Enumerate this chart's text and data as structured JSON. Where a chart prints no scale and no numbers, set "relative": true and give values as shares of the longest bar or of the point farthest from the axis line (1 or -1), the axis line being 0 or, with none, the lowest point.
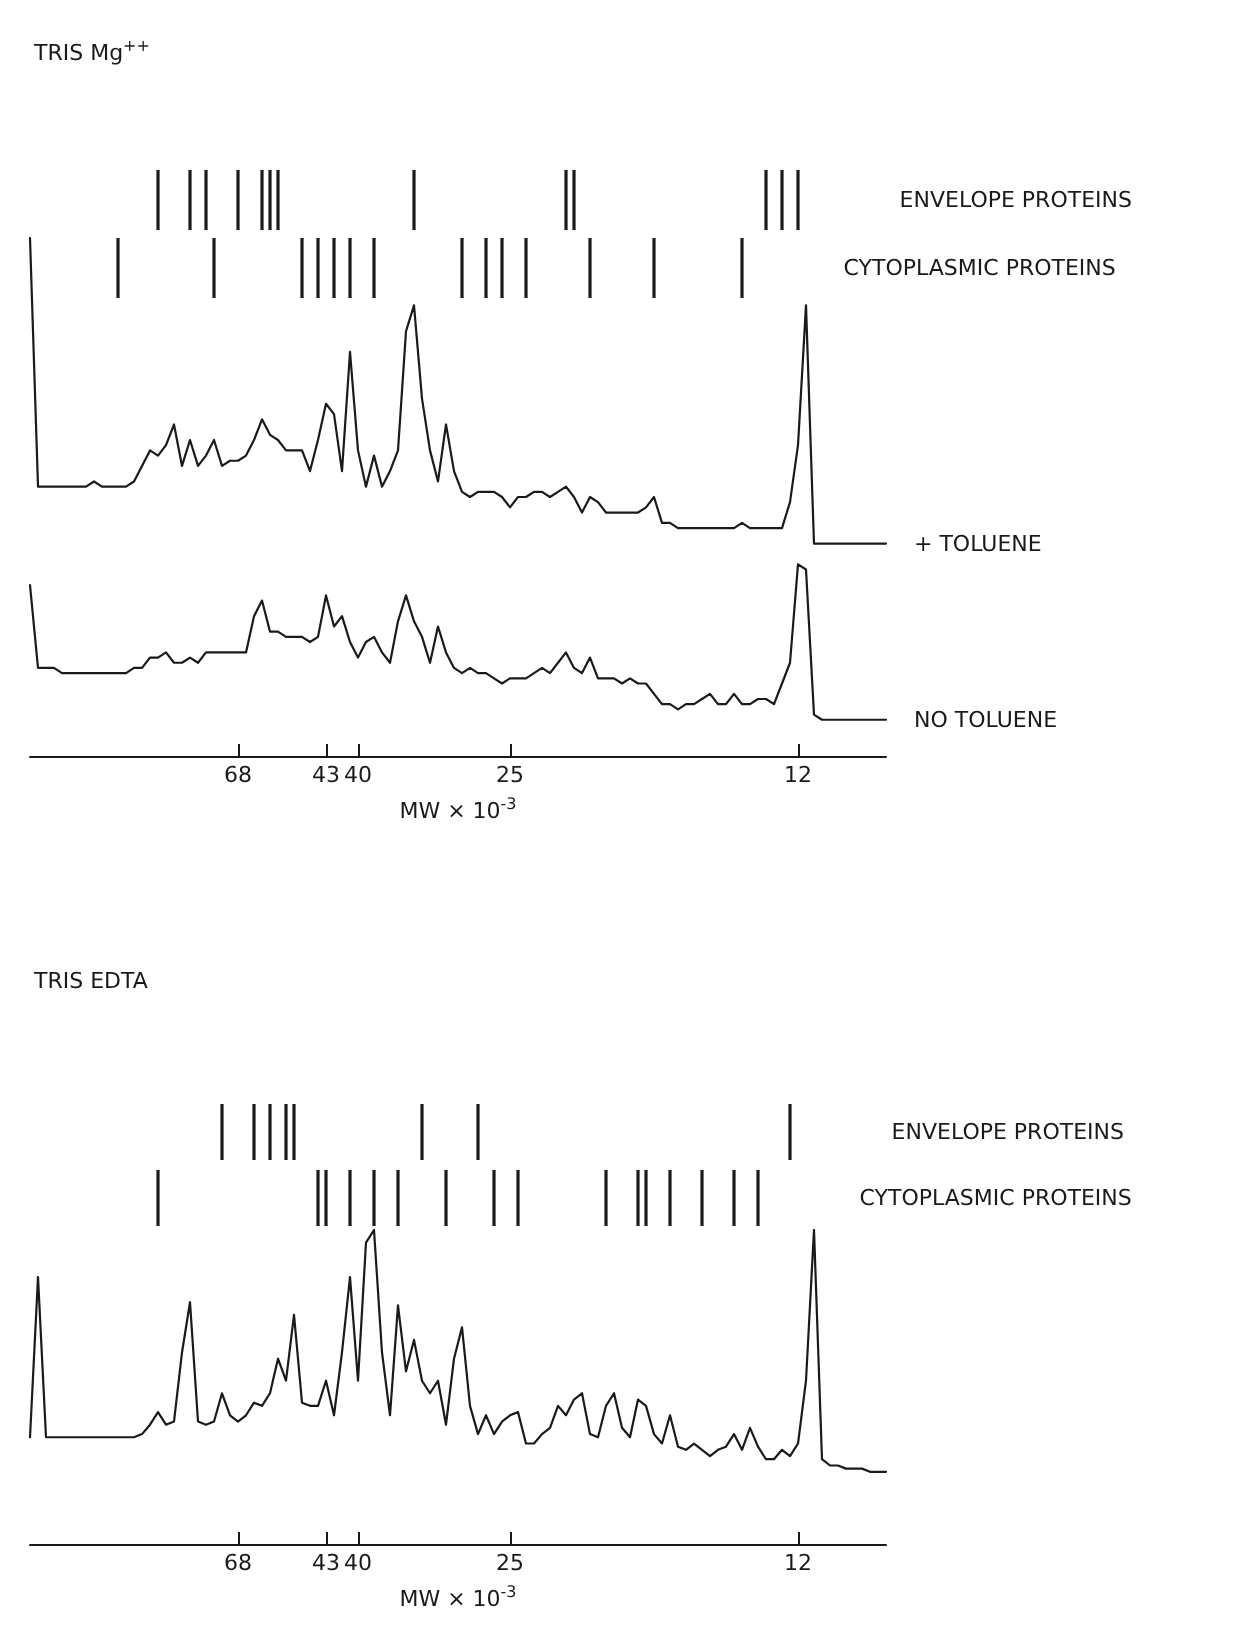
{
  "chart_data": [
    {
      "type": "bar",
      "title": "TRIS Mg$^{++}$",
      "relative": true,
      "tick_labels": false,
      "categories": [
        null,
        null,
        null,
        null,
        null,
        null,
        null,
        null,
        null,
        null,
        null,
        null,
        null,
        null,
        null,
        null,
        null,
        null,
        null,
        null,
        null,
        null,
        null,
        null,
        null,
        null,
        "68",
        null,
        null,
        null,
        null,
        null,
        null,
        null,
        null,
        null,
        null,
        "43",
        null,
        null,
        null,
        "40",
        null,
        null,
        null,
        null,
        null,
        null,
        null,
        null,
        null,
        null,
        null,
        null,
        null,
        null,
        null,
        null,
        null,
        null,
        "25",
        null,
        null,
        null,
        null,
        null,
        null,
        null,
        null,
        null,
        null,
        null,
        null,
        null,
        null,
        null,
        null,
        null,
        null,
        null,
        null,
        null,
        null,
        null,
        null,
        null,
        null,
        null,
        null,
        null,
        null,
        null,
        null,
        null,
        null,
        null,
        "12",
        null,
        null,
        null,
        null,
        null,
        null,
        null,
        null,
        null,
        null,
        null
      ],
      "series": [
        {
          "name": "ENVELOPE PROTEINS",
          "color": "#1a1a1a",
          "values": [
            null,
            null,
            null,
            null,
            null,
            null,
            null,
            null,
            null,
            null,
            null,
            null,
            null,
            null,
            null,
            null,
            1,
            null,
            null,
            null,
            1,
            null,
            1,
            null,
            null,
            null,
            1,
            null,
            null,
            1,
            1,
            1,
            null,
            null,
            null,
            null,
            null,
            null,
            null,
            null,
            null,
            null,
            null,
            null,
            null,
            null,
            null,
            null,
            1,
            null,
            null,
            null,
            null,
            null,
            null,
            null,
            null,
            null,
            null,
            null,
            null,
            null,
            null,
            null,
            null,
            null,
            null,
            1,
            1,
            null,
            null,
            null,
            null,
            null,
            null,
            null,
            null,
            null,
            null,
            null,
            null,
            null,
            null,
            null,
            null,
            null,
            null,
            null,
            null,
            null,
            null,
            null,
            1,
            null,
            1,
            null,
            1,
            null,
            null,
            null,
            null,
            null,
            null,
            null,
            null,
            null,
            null,
            null
          ]
        }
      ]
    },
    {
      "type": "bar",
      "relative": true,
      "tick_labels": false,
      "categories": [
        null,
        null,
        null,
        null,
        null,
        null,
        null,
        null,
        null,
        null,
        null,
        null,
        null,
        null,
        null,
        null,
        null,
        null,
        null,
        null,
        null,
        null,
        null,
        null,
        null,
        null,
        "68",
        null,
        null,
        null,
        null,
        null,
        null,
        null,
        null,
        null,
        null,
        "43",
        null,
        null,
        null,
        "40",
        null,
        null,
        null,
        null,
        null,
        null,
        null,
        null,
        null,
        null,
        null,
        null,
        null,
        null,
        null,
        null,
        null,
        null,
        "25",
        null,
        null,
        null,
        null,
        null,
        null,
        null,
        null,
        null,
        null,
        null,
        null,
        null,
        null,
        null,
        null,
        null,
        null,
        null,
        null,
        null,
        null,
        null,
        null,
        null,
        null,
        null,
        null,
        null,
        null,
        null,
        null,
        null,
        null,
        null,
        "12",
        null,
        null,
        null,
        null,
        null,
        null,
        null,
        null,
        null,
        null,
        null
      ],
      "series": [
        {
          "name": "CYTOPLASMIC PROTEINS",
          "color": "#1a1a1a",
          "values": [
            null,
            null,
            null,
            null,
            null,
            null,
            null,
            null,
            null,
            null,
            null,
            1,
            null,
            null,
            null,
            null,
            null,
            null,
            null,
            null,
            null,
            null,
            null,
            1,
            null,
            null,
            null,
            null,
            null,
            null,
            null,
            null,
            null,
            null,
            1,
            null,
            1,
            null,
            1,
            null,
            1,
            null,
            null,
            1,
            null,
            null,
            null,
            null,
            null,
            null,
            null,
            null,
            null,
            null,
            1,
            null,
            null,
            1,
            null,
            1,
            null,
            null,
            1,
            null,
            null,
            null,
            null,
            null,
            null,
            null,
            1,
            null,
            null,
            null,
            null,
            null,
            null,
            null,
            1,
            null,
            null,
            null,
            null,
            null,
            null,
            null,
            null,
            null,
            null,
            1,
            null,
            null,
            null,
            null,
            null,
            null,
            null,
            null,
            null,
            null,
            null,
            null,
            null,
            null,
            null,
            null,
            null,
            null
          ]
        }
      ]
    },
    {
      "type": "line",
      "xlabel": "MW × 10$^{-3}$",
      "relative": true,
      "marker": "none",
      "line_style": "solid",
      "categories": [
        null,
        null,
        null,
        null,
        null,
        null,
        null,
        null,
        null,
        null,
        null,
        null,
        null,
        null,
        null,
        null,
        null,
        null,
        null,
        null,
        null,
        null,
        null,
        null,
        null,
        null,
        "68",
        null,
        null,
        null,
        null,
        null,
        null,
        null,
        null,
        null,
        null,
        "43",
        null,
        null,
        null,
        "40",
        null,
        null,
        null,
        null,
        null,
        null,
        null,
        null,
        null,
        null,
        null,
        null,
        null,
        null,
        null,
        null,
        null,
        null,
        "25",
        null,
        null,
        null,
        null,
        null,
        null,
        null,
        null,
        null,
        null,
        null,
        null,
        null,
        null,
        null,
        null,
        null,
        null,
        null,
        null,
        null,
        null,
        null,
        null,
        null,
        null,
        null,
        null,
        null,
        null,
        null,
        null,
        null,
        null,
        null,
        "12",
        null,
        null,
        null,
        null,
        null,
        null,
        null,
        null,
        null,
        null,
        null
      ],
      "series": [
        {
          "name": "+ TOLUENE",
          "color": "#1a1a1a",
          "values": [
            1.0,
            0.52,
            0.52,
            0.52,
            0.52,
            0.52,
            0.52,
            0.52,
            0.53,
            0.52,
            0.52,
            0.52,
            0.52,
            0.53,
            0.56,
            0.59,
            0.58,
            0.6,
            0.64,
            0.56,
            0.61,
            0.56,
            0.58,
            0.61,
            0.56,
            0.57,
            0.57,
            0.58,
            0.61,
            0.65,
            0.62,
            0.61,
            0.59,
            0.59,
            0.59,
            0.55,
            0.61,
            0.68,
            0.66,
            0.55,
            0.78,
            0.59,
            0.52,
            0.58,
            0.52,
            0.55,
            0.59,
            0.82,
            0.87,
            0.69,
            0.59,
            0.53,
            0.64,
            0.55,
            0.51,
            0.5,
            0.51,
            0.51,
            0.51,
            0.5,
            0.48,
            0.5,
            0.5,
            0.51,
            0.51,
            0.5,
            0.51,
            0.52,
            0.5,
            0.47,
            0.5,
            0.49,
            0.47,
            0.47,
            0.47,
            0.47,
            0.47,
            0.48,
            0.5,
            0.45,
            0.45,
            0.44,
            0.44,
            0.44,
            0.44,
            0.44,
            0.44,
            0.44,
            0.44,
            0.45,
            0.44,
            0.44,
            0.44,
            0.44,
            0.44,
            0.49,
            0.6,
            0.87,
            0.41,
            0.41,
            0.41,
            0.41,
            0.41,
            0.41,
            0.41,
            0.41,
            0.41,
            0.41
          ]
        },
        {
          "name": "NO TOLUENE",
          "color": "#1a1a1a",
          "values": [
            0.33,
            0.17,
            0.17,
            0.17,
            0.16,
            0.16,
            0.16,
            0.16,
            0.16,
            0.16,
            0.16,
            0.16,
            0.16,
            0.17,
            0.17,
            0.19,
            0.19,
            0.2,
            0.18,
            0.18,
            0.19,
            0.18,
            0.2,
            0.2,
            0.2,
            0.2,
            0.2,
            0.2,
            0.27,
            0.3,
            0.24,
            0.24,
            0.23,
            0.23,
            0.23,
            0.22,
            0.23,
            0.31,
            0.25,
            0.27,
            0.22,
            0.19,
            0.22,
            0.23,
            0.2,
            0.18,
            0.26,
            0.31,
            0.26,
            0.23,
            0.18,
            0.25,
            0.2,
            0.17,
            0.16,
            0.17,
            0.16,
            0.16,
            0.15,
            0.14,
            0.15,
            0.15,
            0.15,
            0.16,
            0.17,
            0.16,
            0.18,
            0.2,
            0.17,
            0.16,
            0.19,
            0.15,
            0.15,
            0.15,
            0.14,
            0.15,
            0.14,
            0.14,
            0.12,
            0.1,
            0.1,
            0.09,
            0.1,
            0.1,
            0.11,
            0.12,
            0.1,
            0.1,
            0.12,
            0.1,
            0.1,
            0.11,
            0.11,
            0.1,
            0.14,
            0.18,
            0.37,
            0.36,
            0.08,
            0.07,
            0.07,
            0.07,
            0.07,
            0.07,
            0.07,
            0.07,
            0.07,
            0.07
          ]
        }
      ]
    },
    {
      "type": "bar",
      "title": "TRIS EDTA",
      "relative": true,
      "tick_labels": false,
      "categories": [
        null,
        null,
        null,
        null,
        null,
        null,
        null,
        null,
        null,
        null,
        null,
        null,
        null,
        null,
        null,
        null,
        null,
        null,
        null,
        null,
        null,
        null,
        null,
        null,
        null,
        null,
        "68",
        null,
        null,
        null,
        null,
        null,
        null,
        null,
        null,
        null,
        null,
        "43",
        null,
        null,
        null,
        "40",
        null,
        null,
        null,
        null,
        null,
        null,
        null,
        null,
        null,
        null,
        null,
        null,
        null,
        null,
        null,
        null,
        null,
        null,
        "25",
        null,
        null,
        null,
        null,
        null,
        null,
        null,
        null,
        null,
        null,
        null,
        null,
        null,
        null,
        null,
        null,
        null,
        null,
        null,
        null,
        null,
        null,
        null,
        null,
        null,
        null,
        null,
        null,
        null,
        null,
        null,
        null,
        null,
        null,
        null,
        "12",
        null,
        null,
        null,
        null,
        null,
        null,
        null,
        null,
        null,
        null,
        null
      ],
      "series": [
        {
          "name": "ENVELOPE PROTEINS",
          "color": "#1a1a1a",
          "values": [
            null,
            null,
            null,
            null,
            null,
            null,
            null,
            null,
            null,
            null,
            null,
            null,
            null,
            null,
            null,
            null,
            null,
            null,
            null,
            null,
            null,
            null,
            null,
            null,
            1,
            null,
            null,
            null,
            1,
            null,
            1,
            null,
            1,
            1,
            null,
            null,
            null,
            null,
            null,
            null,
            null,
            null,
            null,
            null,
            null,
            null,
            null,
            null,
            null,
            1,
            null,
            null,
            null,
            null,
            null,
            null,
            1,
            null,
            null,
            null,
            null,
            null,
            null,
            null,
            null,
            null,
            null,
            null,
            null,
            null,
            null,
            null,
            null,
            null,
            null,
            null,
            null,
            null,
            null,
            null,
            null,
            null,
            null,
            null,
            null,
            null,
            null,
            null,
            null,
            null,
            null,
            null,
            null,
            null,
            null,
            1,
            null,
            null,
            null,
            null,
            null,
            null,
            null,
            null,
            null,
            null,
            null,
            null
          ]
        }
      ]
    },
    {
      "type": "bar",
      "relative": true,
      "tick_labels": false,
      "categories": [
        null,
        null,
        null,
        null,
        null,
        null,
        null,
        null,
        null,
        null,
        null,
        null,
        null,
        null,
        null,
        null,
        null,
        null,
        null,
        null,
        null,
        null,
        null,
        null,
        null,
        null,
        "68",
        null,
        null,
        null,
        null,
        null,
        null,
        null,
        null,
        null,
        null,
        "43",
        null,
        null,
        null,
        "40",
        null,
        null,
        null,
        null,
        null,
        null,
        null,
        null,
        null,
        null,
        null,
        null,
        null,
        null,
        null,
        null,
        null,
        null,
        "25",
        null,
        null,
        null,
        null,
        null,
        null,
        null,
        null,
        null,
        null,
        null,
        null,
        null,
        null,
        null,
        null,
        null,
        null,
        null,
        null,
        null,
        null,
        null,
        null,
        null,
        null,
        null,
        null,
        null,
        null,
        null,
        null,
        null,
        null,
        null,
        "12",
        null,
        null,
        null,
        null,
        null,
        null,
        null,
        null,
        null,
        null,
        null
      ],
      "series": [
        {
          "name": "CYTOPLASMIC PROTEINS",
          "color": "#1a1a1a",
          "values": [
            null,
            null,
            null,
            null,
            null,
            null,
            null,
            null,
            null,
            null,
            null,
            null,
            null,
            null,
            null,
            null,
            1,
            null,
            null,
            null,
            null,
            null,
            null,
            null,
            null,
            null,
            null,
            null,
            null,
            null,
            null,
            null,
            null,
            null,
            null,
            null,
            1,
            1,
            null,
            null,
            1,
            null,
            null,
            1,
            null,
            null,
            1,
            null,
            null,
            null,
            null,
            null,
            1,
            null,
            null,
            null,
            null,
            null,
            1,
            null,
            null,
            1,
            null,
            null,
            null,
            null,
            null,
            null,
            null,
            null,
            null,
            null,
            1,
            null,
            null,
            null,
            1,
            1,
            null,
            null,
            1,
            null,
            null,
            null,
            1,
            null,
            null,
            null,
            1,
            null,
            null,
            1,
            null,
            null,
            null,
            null,
            null,
            null,
            null,
            null,
            null,
            null,
            null,
            null,
            null,
            null,
            null,
            null
          ]
        }
      ]
    },
    {
      "type": "line",
      "xlabel": "MW × 10$^{-3}$",
      "relative": true,
      "marker": "none",
      "line_style": "solid",
      "categories": [
        null,
        null,
        null,
        null,
        null,
        null,
        null,
        null,
        null,
        null,
        null,
        null,
        null,
        null,
        null,
        null,
        null,
        null,
        null,
        null,
        null,
        null,
        null,
        null,
        null,
        null,
        "68",
        null,
        null,
        null,
        null,
        null,
        null,
        null,
        null,
        null,
        null,
        "43",
        null,
        null,
        null,
        "40",
        null,
        null,
        null,
        null,
        null,
        null,
        null,
        null,
        null,
        null,
        null,
        null,
        null,
        null,
        null,
        null,
        null,
        null,
        "25",
        null,
        null,
        null,
        null,
        null,
        null,
        null,
        null,
        null,
        null,
        null,
        null,
        null,
        null,
        null,
        null,
        null,
        null,
        null,
        null,
        null,
        null,
        null,
        null,
        null,
        null,
        null,
        null,
        null,
        null,
        null,
        null,
        null,
        null,
        null,
        "12",
        null,
        null,
        null,
        null,
        null,
        null,
        null,
        null,
        null,
        null,
        null
      ],
      "series": [
        {
          "color": "#1a1a1a",
          "values": [
            0.34,
            0.85,
            0.34,
            0.34,
            0.34,
            0.34,
            0.34,
            0.34,
            0.34,
            0.34,
            0.34,
            0.34,
            0.34,
            0.34,
            0.35,
            0.38,
            0.42,
            0.38,
            0.39,
            0.61,
            0.77,
            0.39,
            0.38,
            0.39,
            0.48,
            0.41,
            0.39,
            0.41,
            0.45,
            0.44,
            0.48,
            0.59,
            0.52,
            0.73,
            0.45,
            0.44,
            0.44,
            0.52,
            0.41,
            0.61,
            0.85,
            0.52,
            0.96,
            1.0,
            0.61,
            0.41,
            0.76,
            0.55,
            0.65,
            0.52,
            0.48,
            0.52,
            0.38,
            0.59,
            0.69,
            0.44,
            0.35,
            0.41,
            0.35,
            0.39,
            0.41,
            0.42,
            0.32,
            0.32,
            0.35,
            0.37,
            0.44,
            0.41,
            0.46,
            0.48,
            0.35,
            0.34,
            0.44,
            0.48,
            0.37,
            0.34,
            0.46,
            0.44,
            0.35,
            0.32,
            0.41,
            0.31,
            0.3,
            0.32,
            0.3,
            0.28,
            0.3,
            0.31,
            0.35,
            0.3,
            0.37,
            0.31,
            0.27,
            0.27,
            0.3,
            0.28,
            0.32,
            0.52,
            1.0,
            0.27,
            0.25,
            0.25,
            0.24,
            0.24,
            0.24,
            0.23,
            0.23,
            0.23
          ]
        }
      ]
    }
  ]
}
